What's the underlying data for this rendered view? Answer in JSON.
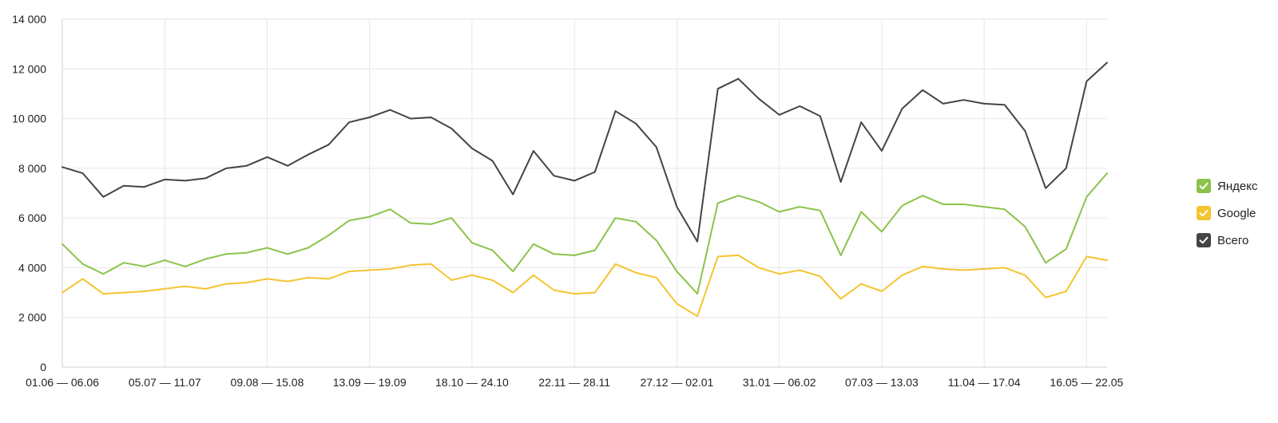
{
  "chart_data": {
    "type": "line",
    "yticks": [
      "0",
      "2 000",
      "4 000",
      "6 000",
      "8 000",
      "10 000",
      "12 000",
      "14 000"
    ],
    "ylim": [
      0,
      14000
    ],
    "grid": true,
    "legend_position": "right",
    "x": [
      "01.06 — 06.06",
      "",
      "",
      "",
      "",
      "05.07 — 11.07",
      "",
      "",
      "",
      "",
      "09.08 — 15.08",
      "",
      "",
      "",
      "",
      "13.09 — 19.09",
      "",
      "",
      "",
      "",
      "18.10 — 24.10",
      "",
      "",
      "",
      "",
      "22.11 — 28.11",
      "",
      "",
      "",
      "",
      "27.12 — 02.01",
      "",
      "",
      "",
      "",
      "31.01 — 06.02",
      "",
      "",
      "",
      "",
      "07.03 — 13.03",
      "",
      "",
      "",
      "",
      "11.04 — 17.04",
      "",
      "",
      "",
      "",
      "16.05 — 22.05",
      ""
    ],
    "series": [
      {
        "name": "Яндекс",
        "color": "#8bc34a",
        "values": [
          4950,
          4150,
          3750,
          4200,
          4050,
          4300,
          4050,
          4350,
          4550,
          4600,
          4800,
          4550,
          4800,
          5300,
          5900,
          6050,
          6350,
          5800,
          5750,
          6000,
          5000,
          4700,
          3850,
          4950,
          4550,
          4500,
          4700,
          6000,
          5850,
          5100,
          3850,
          2950,
          6600,
          6900,
          6650,
          6250,
          6450,
          6300,
          4500,
          6250,
          5450,
          6500,
          6900,
          6550,
          6550,
          6450,
          6350,
          5650,
          4200,
          4750,
          6850,
          7800
        ]
      },
      {
        "name": "Google",
        "color": "#f4c430",
        "values": [
          3000,
          3550,
          2950,
          3000,
          3050,
          3150,
          3250,
          3150,
          3350,
          3400,
          3550,
          3450,
          3600,
          3550,
          3850,
          3900,
          3950,
          4100,
          4150,
          3500,
          3700,
          3500,
          3000,
          3700,
          3100,
          2950,
          3000,
          4150,
          3800,
          3600,
          2550,
          2050,
          4450,
          4500,
          4000,
          3750,
          3900,
          3650,
          2750,
          3350,
          3050,
          3700,
          4050,
          3950,
          3900,
          3950,
          4000,
          3700,
          2800,
          3050,
          4450,
          4300
        ]
      },
      {
        "name": "Всего",
        "color": "#444444",
        "values": [
          8050,
          7800,
          6850,
          7300,
          7250,
          7550,
          7500,
          7600,
          8000,
          8100,
          8450,
          8100,
          8550,
          8950,
          9850,
          10050,
          10350,
          10000,
          10050,
          9600,
          8800,
          8300,
          6950,
          8700,
          7700,
          7500,
          7850,
          10300,
          9800,
          8850,
          6450,
          5050,
          11200,
          11600,
          10800,
          10150,
          10500,
          10100,
          7450,
          9850,
          8700,
          10400,
          11150,
          10600,
          10750,
          10600,
          10550,
          9500,
          7200,
          8000,
          11500,
          12250
        ]
      }
    ]
  }
}
